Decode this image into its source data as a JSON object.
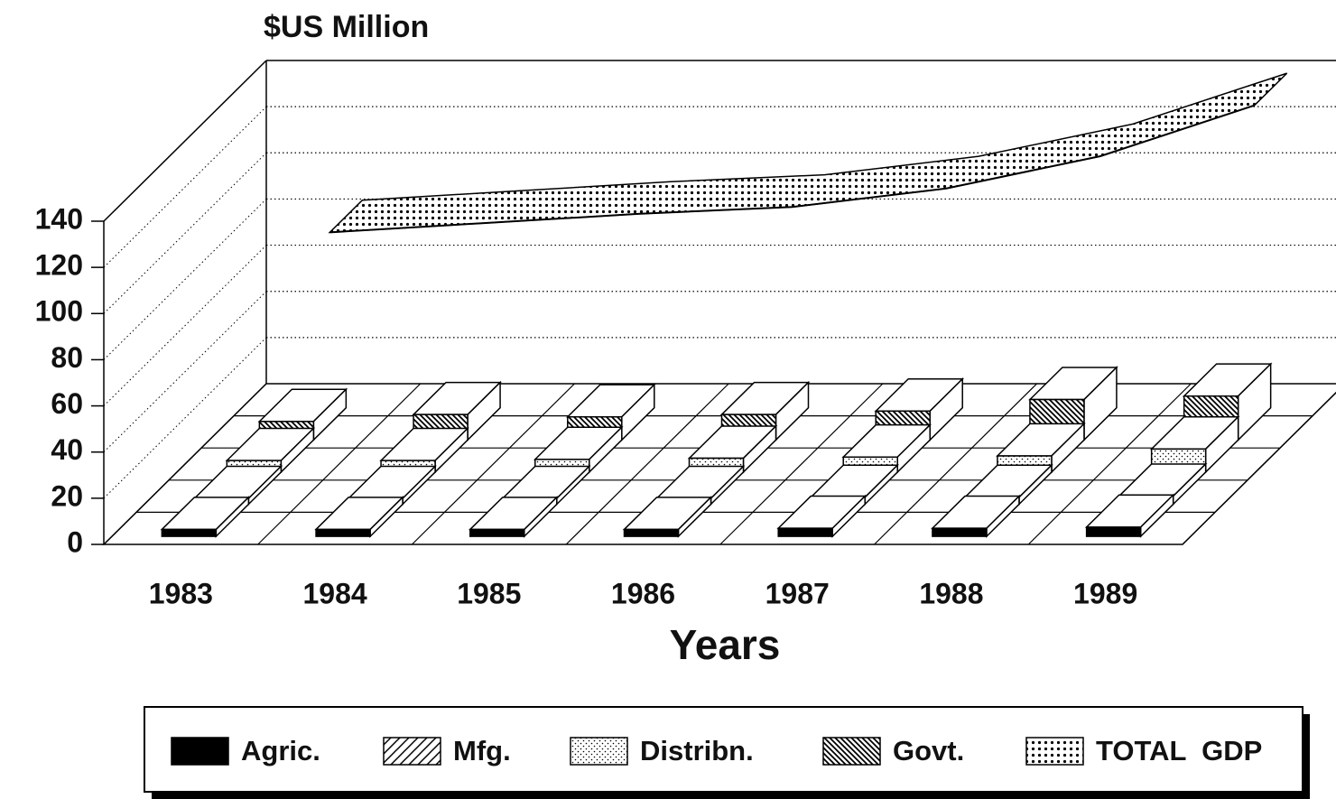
{
  "chart_data": {
    "type": "bar",
    "title": "$US Million",
    "x_label": "Years",
    "categories": [
      "1983",
      "1984",
      "1985",
      "1986",
      "1987",
      "1988",
      "1989"
    ],
    "ylim": [
      0,
      140
    ],
    "yticks": [
      0,
      20,
      40,
      60,
      80,
      100,
      120,
      140
    ],
    "grid": true,
    "legend": "bottom",
    "series": [
      {
        "name": "Agric.",
        "color": "#000000",
        "values": [
          3,
          3,
          3,
          3,
          3.5,
          3.5,
          4
        ]
      },
      {
        "name": "Mfg.",
        "color": "#000000",
        "values": [
          2.5,
          2.5,
          2.5,
          2.5,
          3,
          3,
          3.5
        ]
      },
      {
        "name": "Distribn.",
        "color": "#000000",
        "values": [
          5,
          5,
          5.5,
          6,
          6.5,
          7,
          10
        ]
      },
      {
        "name": "Govt.",
        "color": "#000000",
        "values": [
          8,
          11,
          10,
          11,
          12.5,
          17.5,
          19
        ]
      },
      {
        "name": "TOTAL  GDP",
        "color": "#000000",
        "type": "line",
        "values": [
          76,
          80,
          84,
          87,
          95,
          109,
          131
        ]
      }
    ]
  }
}
